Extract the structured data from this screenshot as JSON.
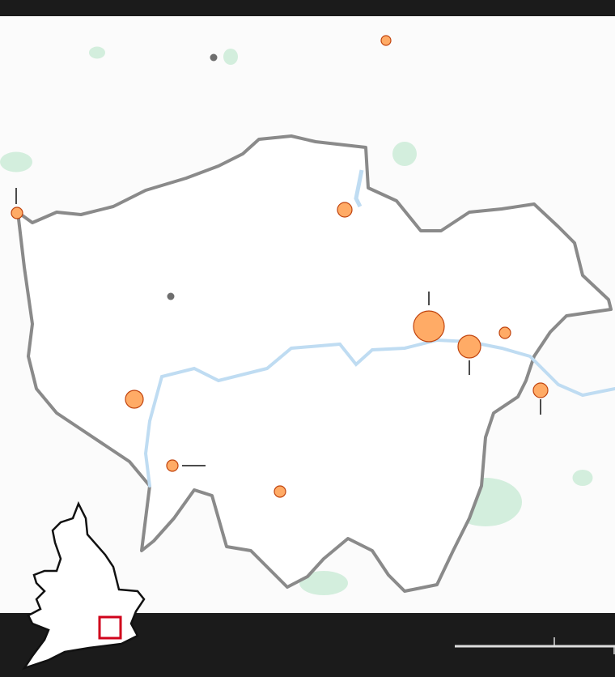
{
  "colors": {
    "frame": "#1b1b1b",
    "land": "#ffffff",
    "park": "#d3eedd",
    "water": "#d6e9f7",
    "river_stroke": "#a9d1ee",
    "boundary": "#6b6b6b",
    "marker_fill": "#ffab66",
    "marker_stroke": "#c1440e",
    "point_gray": "#6e6e6e",
    "inset_box": "#d0021b",
    "scale_bar": "#dddddd"
  },
  "icons": {
    "marker": "circle-marker",
    "inset": "england-wales-locator-icon"
  }
}
